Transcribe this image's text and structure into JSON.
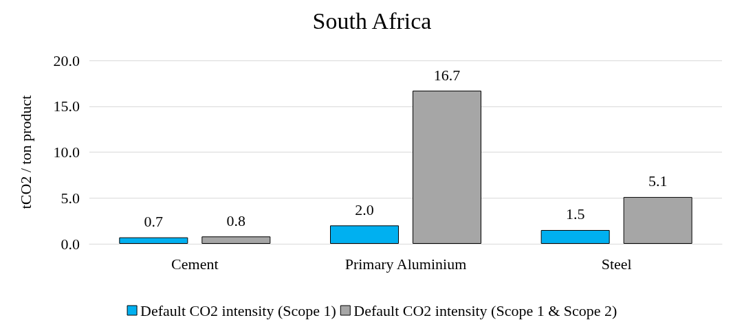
{
  "chart_data": {
    "type": "bar",
    "title": "South Africa",
    "ylabel": "tCO2 / ton product",
    "categories": [
      "Cement",
      "Primary Aluminium",
      "Steel"
    ],
    "series": [
      {
        "name": "Default CO2 intensity (Scope 1)",
        "color": "#00b0f0",
        "values": [
          0.7,
          2.0,
          1.5
        ],
        "value_labels": [
          "0.7",
          "2.0",
          "1.5"
        ]
      },
      {
        "name": "Default CO2 intensity (Scope 1 & Scope 2)",
        "color": "#a6a6a6",
        "values": [
          0.8,
          16.7,
          5.1
        ],
        "value_labels": [
          "0.8",
          "16.7",
          "5.1"
        ]
      }
    ],
    "ylim": [
      0,
      20
    ],
    "yticks": [
      {
        "value": 0,
        "label": "0.0"
      },
      {
        "value": 5,
        "label": "5.0"
      },
      {
        "value": 10,
        "label": "10.0"
      },
      {
        "value": 15,
        "label": "15.0"
      },
      {
        "value": 20,
        "label": "20.0"
      }
    ],
    "grid": "y",
    "legend": "bottom"
  }
}
